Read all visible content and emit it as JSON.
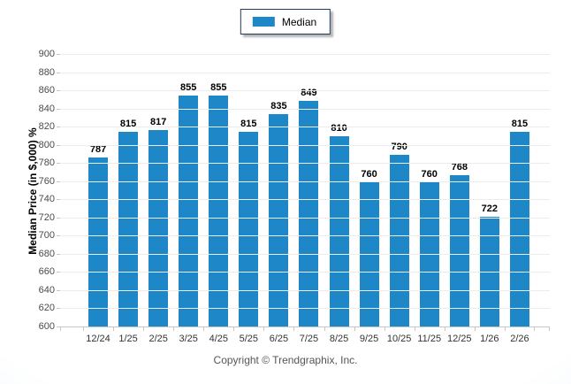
{
  "legend": {
    "label": "Median",
    "swatch_icon": "blue-square-swatch"
  },
  "footer": {
    "text": "Copyright © Trendgraphix, Inc."
  },
  "colors": {
    "bar": "#1d87c8",
    "grid": "#ececec",
    "axis": "#c6c6c6",
    "background_edge": "#d7e6f5"
  },
  "chart_data": {
    "type": "bar",
    "title": "",
    "xlabel": "",
    "ylabel": "Median Price (in $,000) %",
    "categories": [
      "12/24",
      "1/25",
      "2/25",
      "3/25",
      "4/25",
      "5/25",
      "6/25",
      "7/25",
      "8/25",
      "9/25",
      "10/25",
      "11/25",
      "12/25",
      "1/26",
      "2/26"
    ],
    "series": [
      {
        "name": "Median",
        "color": "#1d87c8",
        "values": [
          787,
          815,
          817,
          855,
          855,
          815,
          835,
          849,
          810,
          760,
          790,
          760,
          768,
          722,
          815
        ]
      }
    ],
    "ylim": [
      600,
      900
    ],
    "ytick_step": 20,
    "grid": true,
    "legend_position": "top-center",
    "value_labels": true
  }
}
